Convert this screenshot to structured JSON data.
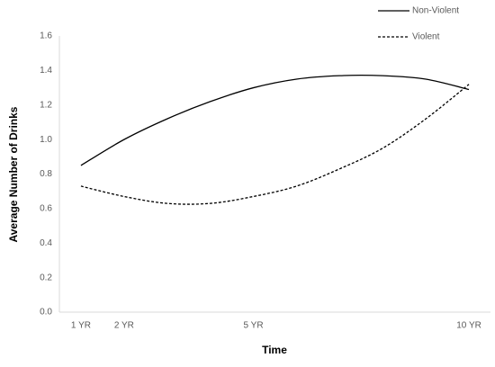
{
  "chart_data": {
    "type": "line",
    "x_label": "Time",
    "y_label": "Average Number of Drinks",
    "x": [
      1,
      2,
      3,
      4,
      5,
      6,
      7,
      8,
      9,
      10
    ],
    "xlim": [
      0.5,
      10.5
    ],
    "xticks": [
      {
        "value": 1,
        "label": "1 YR"
      },
      {
        "value": 2,
        "label": "2 YR"
      },
      {
        "value": 5,
        "label": "5 YR"
      },
      {
        "value": 10,
        "label": "10 YR"
      }
    ],
    "ylim": [
      0,
      1.6
    ],
    "yticks": [
      {
        "value": 0,
        "label": "0.0"
      },
      {
        "value": 0.2,
        "label": "0.2"
      },
      {
        "value": 0.4,
        "label": "0.4"
      },
      {
        "value": 0.6,
        "label": "0.6"
      },
      {
        "value": 0.8,
        "label": "0.8"
      },
      {
        "value": 1,
        "label": "1.0"
      },
      {
        "value": 1.2,
        "label": "1.2"
      },
      {
        "value": 1.4,
        "label": "1.4"
      },
      {
        "value": 1.6,
        "label": "1.6"
      }
    ],
    "series": [
      {
        "name": "Non-Violent",
        "color": "#000000",
        "dash": "solid",
        "values": [
          0.85,
          1.0,
          1.12,
          1.22,
          1.3,
          1.35,
          1.37,
          1.37,
          1.35,
          1.29
        ]
      },
      {
        "name": "Violent",
        "color": "#000000",
        "dash": "dashed",
        "values": [
          0.73,
          0.67,
          0.63,
          0.63,
          0.67,
          0.73,
          0.83,
          0.95,
          1.12,
          1.32
        ]
      }
    ]
  }
}
